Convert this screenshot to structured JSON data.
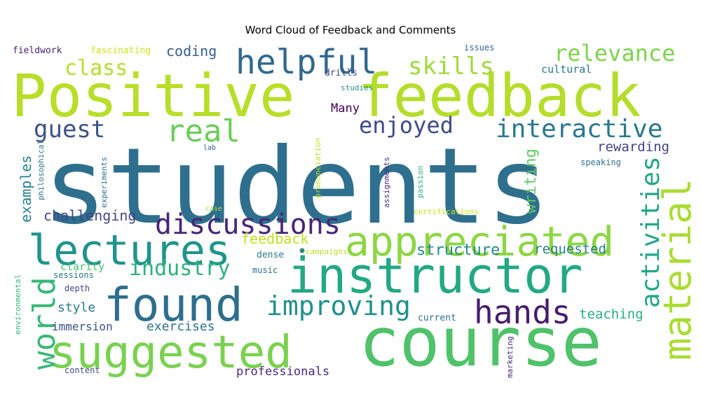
{
  "chart_data": {
    "type": "wordcloud",
    "title": "Word Cloud of Feedback and Comments",
    "words": [
      {
        "text": "students",
        "weight": 1.0,
        "color": "#2f6f8e"
      },
      {
        "text": "course",
        "weight": 0.82,
        "color": "#4fc26a"
      },
      {
        "text": "Positive",
        "weight": 0.62,
        "color": "#b8de29"
      },
      {
        "text": "feedback",
        "weight": 0.62,
        "color": "#b5dd2b"
      },
      {
        "text": "instructor",
        "weight": 0.55,
        "color": "#23a884"
      },
      {
        "text": "suggested",
        "weight": 0.52,
        "color": "#7ad151"
      },
      {
        "text": "found",
        "weight": 0.52,
        "color": "#2e6e8e"
      },
      {
        "text": "appreciated",
        "weight": 0.5,
        "color": "#8ed645"
      },
      {
        "text": "lectures",
        "weight": 0.48,
        "color": "#1f948c"
      },
      {
        "text": "material",
        "weight": 0.45,
        "color": "#aadc32"
      },
      {
        "text": "hands",
        "weight": 0.38,
        "color": "#471d6e"
      },
      {
        "text": "helpful",
        "weight": 0.38,
        "color": "#31688e"
      },
      {
        "text": "real",
        "weight": 0.36,
        "color": "#6ccd5a"
      },
      {
        "text": "world",
        "weight": 0.36,
        "color": "#37b878"
      },
      {
        "text": "discussions",
        "weight": 0.33,
        "color": "#482576"
      },
      {
        "text": "improving",
        "weight": 0.31,
        "color": "#21908d"
      },
      {
        "text": "interactive",
        "weight": 0.3,
        "color": "#2a788e"
      },
      {
        "text": "activities",
        "weight": 0.3,
        "color": "#22a785"
      },
      {
        "text": "skills",
        "weight": 0.28,
        "color": "#9fda3a"
      },
      {
        "text": "relevance",
        "weight": 0.27,
        "color": "#7fd34e"
      },
      {
        "text": "industry",
        "weight": 0.26,
        "color": "#2db27d"
      },
      {
        "text": "enjoyed",
        "weight": 0.26,
        "color": "#3e4a89"
      },
      {
        "text": "guest",
        "weight": 0.26,
        "color": "#3b528b"
      },
      {
        "text": "class",
        "weight": 0.24,
        "color": "#b5de2b"
      },
      {
        "text": "writing",
        "weight": 0.2,
        "color": "#5ec962"
      },
      {
        "text": "structure",
        "weight": 0.19,
        "color": "#23898e"
      },
      {
        "text": "challenging",
        "weight": 0.18,
        "color": "#414487"
      },
      {
        "text": "examples",
        "weight": 0.18,
        "color": "#26828e"
      },
      {
        "text": "feedback",
        "weight": 0.18,
        "color": "#c2df23"
      },
      {
        "text": "requested",
        "weight": 0.17,
        "color": "#277f8e"
      },
      {
        "text": "teaching",
        "weight": 0.17,
        "color": "#29af7f"
      },
      {
        "text": "rewarding",
        "weight": 0.17,
        "color": "#414487"
      },
      {
        "text": "coding",
        "weight": 0.17,
        "color": "#355f8d"
      },
      {
        "text": "exercises",
        "weight": 0.16,
        "color": "#2c728e"
      },
      {
        "text": "style",
        "weight": 0.16,
        "color": "#2a788e"
      },
      {
        "text": "Many",
        "weight": 0.15,
        "color": "#440154"
      },
      {
        "text": "immersion",
        "weight": 0.14,
        "color": "#3b528b"
      },
      {
        "text": "professionals",
        "weight": 0.14,
        "color": "#482878"
      },
      {
        "text": "clarity",
        "weight": 0.13,
        "color": "#4ac16d"
      },
      {
        "text": "cultural",
        "weight": 0.12,
        "color": "#2a788e"
      },
      {
        "text": "fieldwork",
        "weight": 0.1,
        "color": "#482475"
      },
      {
        "text": "fascinating",
        "weight": 0.1,
        "color": "#d2e21b"
      },
      {
        "text": "drills",
        "weight": 0.1,
        "color": "#3e4a89"
      },
      {
        "text": "issues",
        "weight": 0.09,
        "color": "#33638d"
      },
      {
        "text": "studies",
        "weight": 0.09,
        "color": "#21918c"
      },
      {
        "text": "speaking",
        "weight": 0.09,
        "color": "#2c728e"
      },
      {
        "text": "dense",
        "weight": 0.09,
        "color": "#2a788e"
      },
      {
        "text": "music",
        "weight": 0.09,
        "color": "#2c728e"
      },
      {
        "text": "current",
        "weight": 0.09,
        "color": "#2c728e"
      },
      {
        "text": "content",
        "weight": 0.09,
        "color": "#3e4a89"
      },
      {
        "text": "depth",
        "weight": 0.08,
        "color": "#3e4a89"
      },
      {
        "text": "sessions",
        "weight": 0.08,
        "color": "#2c728e"
      },
      {
        "text": "campaigns",
        "weight": 0.08,
        "color": "#b5de2b"
      },
      {
        "text": "certifications",
        "weight": 0.08,
        "color": "#d2e21b"
      },
      {
        "text": "case",
        "weight": 0.07,
        "color": "#a0da39"
      },
      {
        "text": "lab",
        "weight": 0.07,
        "color": "#365c8d"
      },
      {
        "text": "philosophical",
        "weight": 0.08,
        "color": "#2c728e"
      },
      {
        "text": "experiments",
        "weight": 0.08,
        "color": "#2c728e"
      },
      {
        "text": "pronunciation",
        "weight": 0.08,
        "color": "#bddf26"
      },
      {
        "text": "assignments",
        "weight": 0.08,
        "color": "#472c7a"
      },
      {
        "text": "passion",
        "weight": 0.08,
        "color": "#2db27d"
      },
      {
        "text": "environmental",
        "weight": 0.08,
        "color": "#34b679"
      },
      {
        "text": "marketing",
        "weight": 0.08,
        "color": "#482878"
      }
    ]
  }
}
